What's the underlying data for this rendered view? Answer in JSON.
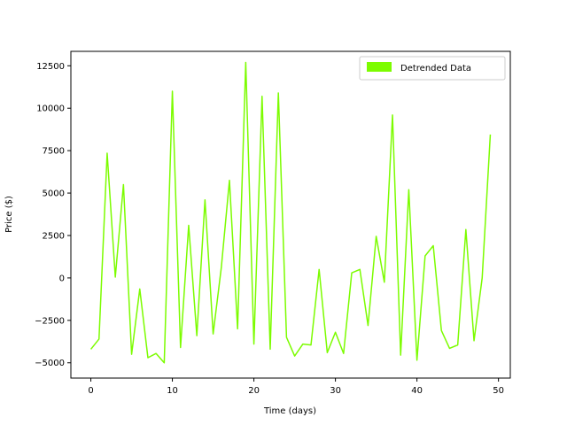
{
  "chart_data": {
    "type": "line",
    "title": "",
    "xlabel": "Time (days)",
    "ylabel": "Price ($)",
    "xlim": [
      -2.45,
      51.45
    ],
    "ylim": [
      -5900,
      13350
    ],
    "xticks": [
      0,
      10,
      20,
      30,
      40,
      50
    ],
    "yticks": [
      -5000,
      -2500,
      0,
      2500,
      5000,
      7500,
      10000,
      12500
    ],
    "xtick_labels": [
      "0",
      "10",
      "20",
      "30",
      "40",
      "50"
    ],
    "ytick_labels": [
      "−5000",
      "−2500",
      "0",
      "2500",
      "5000",
      "7500",
      "10000",
      "12500"
    ],
    "grid": false,
    "legend_position": "upper right",
    "series": [
      {
        "name": "Detrended Data",
        "color": "#7cfc00",
        "x": [
          0,
          1,
          2,
          3,
          4,
          5,
          6,
          7,
          8,
          9,
          10,
          11,
          12,
          13,
          14,
          15,
          16,
          17,
          18,
          19,
          20,
          21,
          22,
          23,
          24,
          25,
          26,
          27,
          28,
          29,
          30,
          31,
          32,
          33,
          34,
          35,
          36,
          37,
          38,
          39,
          40,
          41,
          42,
          43,
          44,
          45,
          46,
          47,
          48,
          49
        ],
        "y": [
          -4200,
          -3600,
          7350,
          50,
          5500,
          -4500,
          -650,
          -4700,
          -4450,
          -5000,
          11000,
          -4100,
          3100,
          -3400,
          4600,
          -3300,
          600,
          5750,
          -3000,
          12700,
          -3900,
          10700,
          -4200,
          10900,
          -3500,
          -4600,
          -3900,
          -3950,
          500,
          -4400,
          -3200,
          -4450,
          300,
          500,
          -2800,
          2450,
          -250,
          9600,
          -4550,
          5200,
          -4850,
          1300,
          1900,
          -3100,
          -4150,
          -3950,
          2850,
          -3700,
          0,
          8450
        ]
      }
    ]
  }
}
